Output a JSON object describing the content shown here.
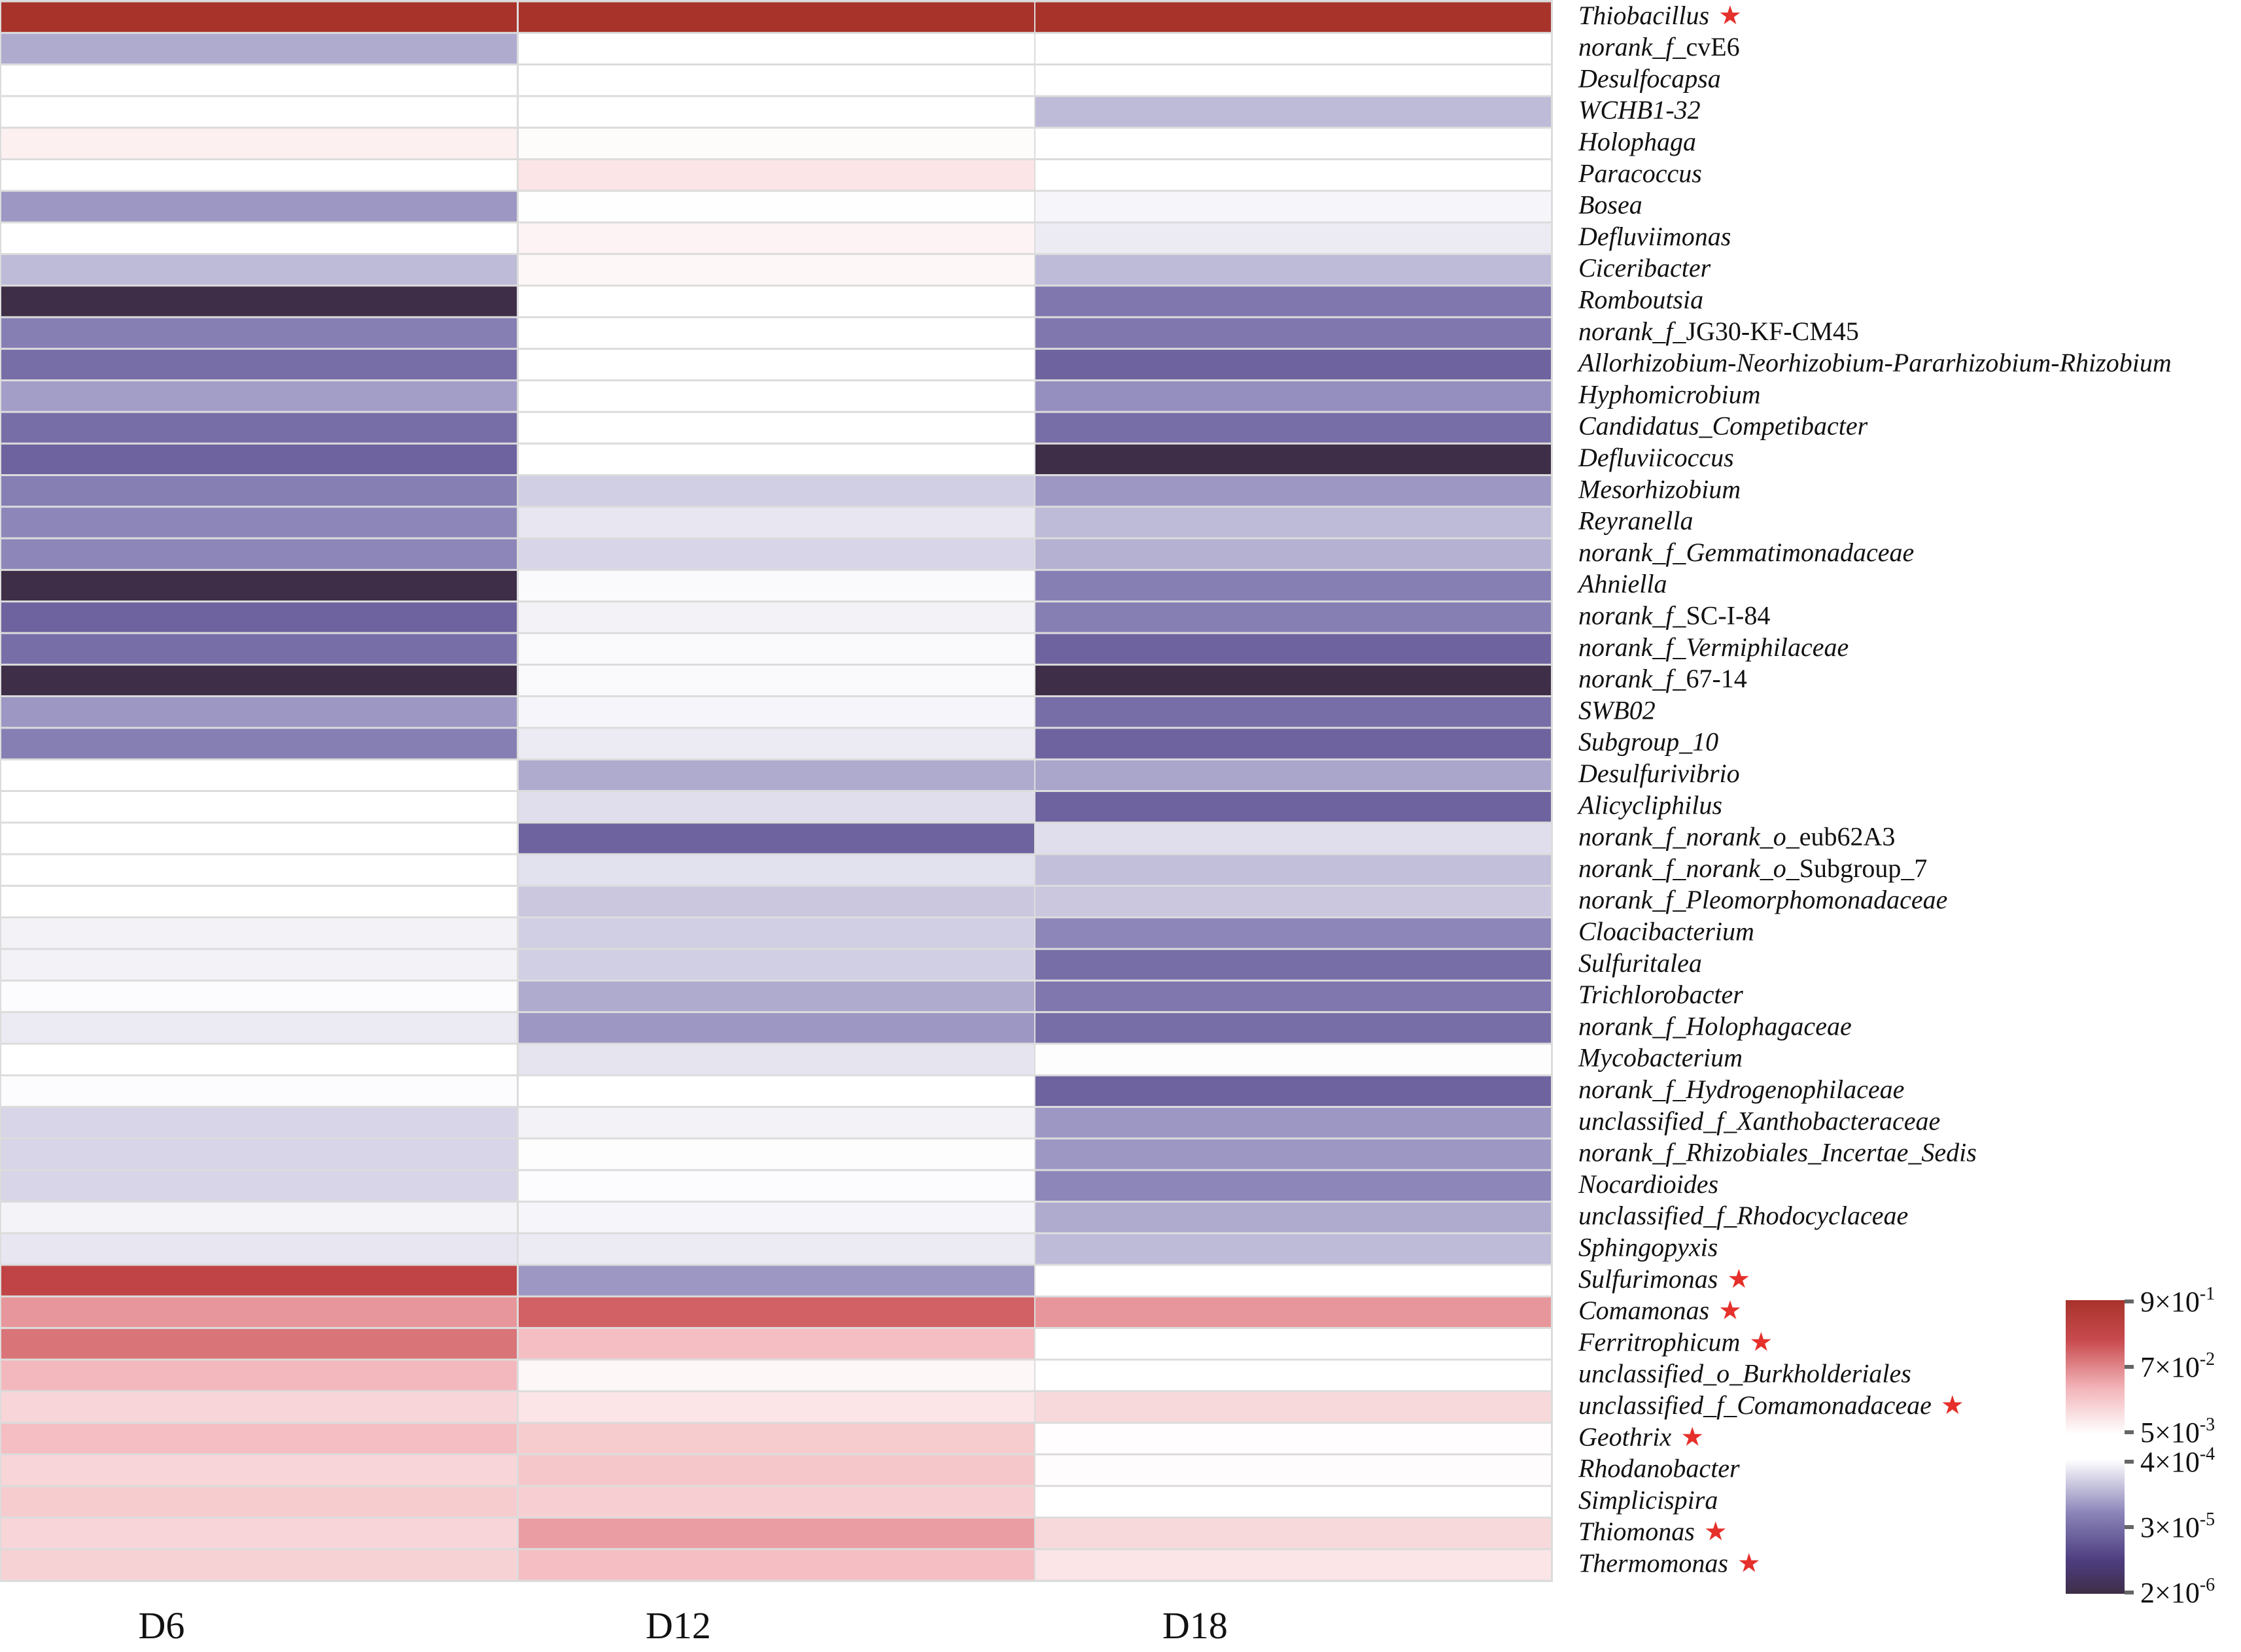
{
  "chart_data": {
    "type": "heatmap",
    "title": "",
    "xlabel": "",
    "ylabel": "",
    "columns": [
      "D6",
      "D12",
      "D18"
    ],
    "rows": [
      {
        "parts": [
          {
            "t": "Thiobacillus",
            "i": true
          }
        ],
        "starred": true,
        "values": [
          0.9,
          0.9,
          0.9
        ]
      },
      {
        "parts": [
          {
            "t": "norank_f_",
            "i": true
          },
          {
            "t": "cvE6",
            "i": false
          }
        ],
        "starred": false,
        "values": [
          0.00012,
          0.0005,
          0.0005
        ]
      },
      {
        "parts": [
          {
            "t": "Desulfocapsa",
            "i": true
          }
        ],
        "starred": false,
        "values": [
          0.0004,
          0.0004,
          0.0004
        ]
      },
      {
        "parts": [
          {
            "t": "WCHB1-32",
            "i": true
          }
        ],
        "starred": false,
        "values": [
          0.0004,
          0.0004,
          0.00015
        ]
      },
      {
        "parts": [
          {
            "t": "Holophaga",
            "i": true
          }
        ],
        "starred": false,
        "values": [
          0.007,
          0.0055,
          0.0004
        ]
      },
      {
        "parts": [
          {
            "t": "Paracoccus",
            "i": true
          }
        ],
        "starred": false,
        "values": [
          0.0004,
          0.009,
          0.0004
        ]
      },
      {
        "parts": [
          {
            "t": "Bosea",
            "i": true
          }
        ],
        "starred": false,
        "values": [
          9e-05,
          0.0051,
          0.00035
        ]
      },
      {
        "parts": [
          {
            "t": "Defluviimonas",
            "i": true
          }
        ],
        "starred": false,
        "values": [
          0.0004,
          0.0065,
          0.0003
        ]
      },
      {
        "parts": [
          {
            "t": "Ciceribacter",
            "i": true
          }
        ],
        "starred": false,
        "values": [
          0.00015,
          0.006,
          0.00015
        ]
      },
      {
        "parts": [
          {
            "t": "Romboutsia",
            "i": true
          }
        ],
        "starred": false,
        "values": [
          2e-06,
          0.0004,
          5e-05
        ]
      },
      {
        "parts": [
          {
            "t": "norank_f_",
            "i": true
          },
          {
            "t": "JG30-KF-CM45",
            "i": false
          }
        ],
        "starred": false,
        "values": [
          6e-05,
          0.0004,
          5e-05
        ]
      },
      {
        "parts": [
          {
            "t": "Allorhizobium-Neorhizobium-Pararhizobium-Rhizobium",
            "i": true
          }
        ],
        "starred": false,
        "values": [
          4e-05,
          0.0004,
          3e-05
        ]
      },
      {
        "parts": [
          {
            "t": "Hyphomicrobium",
            "i": true
          }
        ],
        "starred": false,
        "values": [
          0.0001,
          0.0004,
          8e-05
        ]
      },
      {
        "parts": [
          {
            "t": "Candidatus_Competibacter",
            "i": true
          }
        ],
        "starred": false,
        "values": [
          4e-05,
          0.0004,
          4e-05
        ]
      },
      {
        "parts": [
          {
            "t": "Defluviicoccus",
            "i": true
          }
        ],
        "starred": false,
        "values": [
          3e-05,
          0.0004,
          2e-06
        ]
      },
      {
        "parts": [
          {
            "t": "Mesorhizobium",
            "i": true
          }
        ],
        "starred": false,
        "values": [
          6e-05,
          0.0002,
          9e-05
        ]
      },
      {
        "parts": [
          {
            "t": "Reyranella",
            "i": true
          }
        ],
        "starred": false,
        "values": [
          7e-05,
          0.00028,
          0.00015
        ]
      },
      {
        "parts": [
          {
            "t": "norank_f_",
            "i": true
          },
          {
            "t": "Gemmatimonadaceae",
            "i": true
          }
        ],
        "starred": false,
        "values": [
          7e-05,
          0.00022,
          0.00013
        ]
      },
      {
        "parts": [
          {
            "t": "Ahniella",
            "i": true
          }
        ],
        "starred": false,
        "values": [
          2e-06,
          0.00037,
          6e-05
        ]
      },
      {
        "parts": [
          {
            "t": "norank_f_",
            "i": true
          },
          {
            "t": "SC-I-84",
            "i": false
          }
        ],
        "starred": false,
        "values": [
          3e-05,
          0.00033,
          6e-05
        ]
      },
      {
        "parts": [
          {
            "t": "norank_f_",
            "i": true
          },
          {
            "t": "Vermiphilaceae",
            "i": true
          }
        ],
        "starred": false,
        "values": [
          4e-05,
          0.00037,
          3e-05
        ]
      },
      {
        "parts": [
          {
            "t": "norank_f_",
            "i": true
          },
          {
            "t": "67-14",
            "i": false
          }
        ],
        "starred": false,
        "values": [
          2e-06,
          0.00037,
          2e-06
        ]
      },
      {
        "parts": [
          {
            "t": "SWB02",
            "i": true
          }
        ],
        "starred": false,
        "values": [
          9e-05,
          0.00035,
          4e-05
        ]
      },
      {
        "parts": [
          {
            "t": "Subgroup_10",
            "i": true
          }
        ],
        "starred": false,
        "values": [
          6e-05,
          0.0003,
          3e-05
        ]
      },
      {
        "parts": [
          {
            "t": "Desulfurivibrio",
            "i": true
          }
        ],
        "starred": false,
        "values": [
          0.0004,
          0.00012,
          0.00011
        ]
      },
      {
        "parts": [
          {
            "t": "Alicycliphilus",
            "i": true
          }
        ],
        "starred": false,
        "values": [
          0.0004,
          0.00025,
          3e-05
        ]
      },
      {
        "parts": [
          {
            "t": "norank_f_norank_o_",
            "i": true
          },
          {
            "t": "eub62A3",
            "i": false
          }
        ],
        "starred": false,
        "values": [
          0.0004,
          3e-05,
          0.00025
        ]
      },
      {
        "parts": [
          {
            "t": "norank_f_norank_o_",
            "i": true
          },
          {
            "t": "Subgroup_7",
            "i": false
          }
        ],
        "starred": false,
        "values": [
          0.0004,
          0.00026,
          0.00016
        ]
      },
      {
        "parts": [
          {
            "t": "norank_f_Pleomorphomonadaceae",
            "i": true
          }
        ],
        "starred": false,
        "values": [
          0.0004,
          0.00018,
          0.00018
        ]
      },
      {
        "parts": [
          {
            "t": "Cloacibacterium",
            "i": true
          }
        ],
        "starred": false,
        "values": [
          0.00033,
          0.0002,
          7e-05
        ]
      },
      {
        "parts": [
          {
            "t": "Sulfuritalea",
            "i": true
          }
        ],
        "starred": false,
        "values": [
          0.00033,
          0.0002,
          4e-05
        ]
      },
      {
        "parts": [
          {
            "t": "Trichlorobacter",
            "i": true
          }
        ],
        "starred": false,
        "values": [
          0.00038,
          0.00012,
          5e-05
        ]
      },
      {
        "parts": [
          {
            "t": "norank_f_Holophagaceae",
            "i": true
          }
        ],
        "starred": false,
        "values": [
          0.0003,
          9e-05,
          4e-05
        ]
      },
      {
        "parts": [
          {
            "t": "Mycobacterium",
            "i": true
          }
        ],
        "starred": false,
        "values": [
          0.0004,
          0.00027,
          0.00039
        ]
      },
      {
        "parts": [
          {
            "t": "norank_f_Hydrogenophilaceae",
            "i": true
          }
        ],
        "starred": false,
        "values": [
          0.00038,
          0.0004,
          3e-05
        ]
      },
      {
        "parts": [
          {
            "t": "unclassified_f_Xanthobacteraceae",
            "i": true
          }
        ],
        "starred": false,
        "values": [
          0.00022,
          0.00033,
          9e-05
        ]
      },
      {
        "parts": [
          {
            "t": "norank_f_Rhizobiales_Incertae_Sedis",
            "i": true
          }
        ],
        "starred": false,
        "values": [
          0.00022,
          0.00039,
          9e-05
        ]
      },
      {
        "parts": [
          {
            "t": "Nocardioides",
            "i": true
          }
        ],
        "starred": false,
        "values": [
          0.00022,
          0.00038,
          7e-05
        ]
      },
      {
        "parts": [
          {
            "t": "unclassified_f_Rhodocyclaceae",
            "i": true
          }
        ],
        "starred": false,
        "values": [
          0.00034,
          0.00035,
          0.00012
        ]
      },
      {
        "parts": [
          {
            "t": "Sphingopyxis",
            "i": true
          }
        ],
        "starred": false,
        "values": [
          0.00028,
          0.0003,
          0.00015
        ]
      },
      {
        "parts": [
          {
            "t": "Sulfurimonas",
            "i": true
          }
        ],
        "starred": true,
        "values": [
          0.25,
          9e-05,
          0.0004
        ]
      },
      {
        "parts": [
          {
            "t": "Comamonas",
            "i": true
          }
        ],
        "starred": true,
        "values": [
          0.045,
          0.11,
          0.045
        ]
      },
      {
        "parts": [
          {
            "t": "Ferritrophicum",
            "i": true
          }
        ],
        "starred": true,
        "values": [
          0.08,
          0.022,
          0.0004
        ]
      },
      {
        "parts": [
          {
            "t": "unclassified_o_Burkholderiales",
            "i": true
          }
        ],
        "starred": false,
        "values": [
          0.025,
          0.006,
          0.0004
        ]
      },
      {
        "parts": [
          {
            "t": "unclassified_f_Comamonadaceae",
            "i": true
          }
        ],
        "starred": true,
        "values": [
          0.013,
          0.009,
          0.012
        ]
      },
      {
        "parts": [
          {
            "t": "Geothrix",
            "i": true
          }
        ],
        "starred": true,
        "values": [
          0.022,
          0.016,
          0.0052
        ]
      },
      {
        "parts": [
          {
            "t": "Rhodanobacter",
            "i": true
          }
        ],
        "starred": false,
        "values": [
          0.013,
          0.018,
          0.0053
        ]
      },
      {
        "parts": [
          {
            "t": "Simplicispira",
            "i": true
          }
        ],
        "starred": false,
        "values": [
          0.016,
          0.015,
          0.0004
        ]
      },
      {
        "parts": [
          {
            "t": "Thiomonas",
            "i": true
          }
        ],
        "starred": true,
        "values": [
          0.013,
          0.04,
          0.012
        ]
      },
      {
        "parts": [
          {
            "t": "Thermomonas",
            "i": true
          }
        ],
        "starred": true,
        "values": [
          0.014,
          0.022,
          0.009
        ]
      }
    ],
    "colorbar": {
      "ticks": [
        {
          "value": 0.9,
          "mant": "9",
          "exp": "-1"
        },
        {
          "value": 0.07,
          "mant": "7",
          "exp": "-2"
        },
        {
          "value": 0.005,
          "mant": "5",
          "exp": "-3"
        },
        {
          "value": 0.0004,
          "mant": "4",
          "exp": "-4"
        },
        {
          "value": 3e-05,
          "mant": "3",
          "exp": "-5"
        },
        {
          "value": 2e-06,
          "mant": "2",
          "exp": "-6"
        }
      ],
      "red_scale": {
        "low": 0.005,
        "high": 0.9,
        "colors": [
          "#ffffff",
          "#f2b3b8",
          "#c84a4e",
          "#a8332b"
        ]
      },
      "blue_scale": {
        "low": 2e-06,
        "high": 0.0004,
        "colors": [
          "#3e2e47",
          "#4e3d80",
          "#8a84b8",
          "#ffffff"
        ]
      }
    },
    "significance_marker": "★",
    "significance_color": "#e5302b",
    "grid": true,
    "legend_position": "bottom-right"
  }
}
